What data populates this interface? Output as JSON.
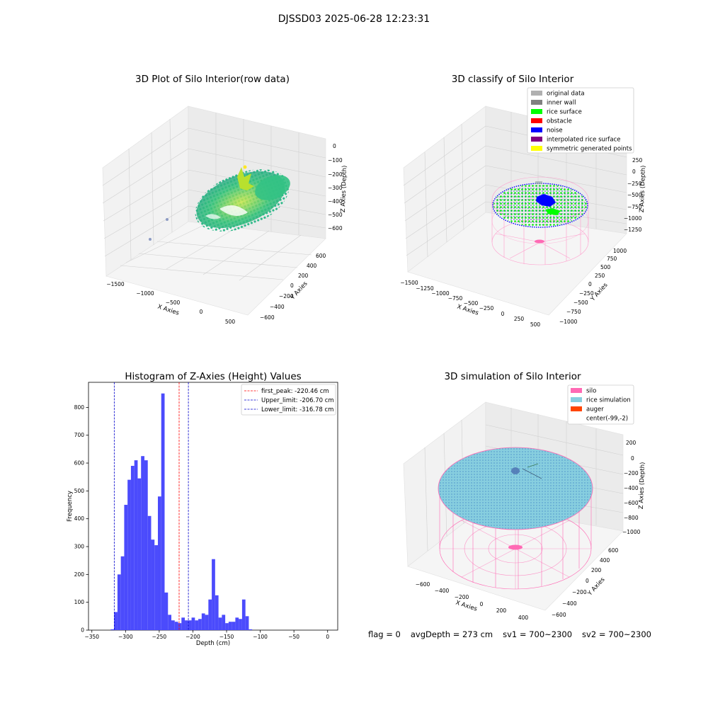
{
  "suptitle": "DJSSD03 2025-06-28 12:23:31",
  "footer": {
    "flag": "flag = 0",
    "avg_depth": "avgDepth = 273 cm",
    "sv1": "sv1 = 700~2300",
    "sv2": "sv2 = 700~2300"
  },
  "colors": {
    "histogram_bar": "#4b4bfc",
    "first_peak_line": "#ff0000",
    "limit_line": "#0000cc",
    "silo": "#ff69b4",
    "rice_simulation": "#87cedf",
    "auger": "#ff4500",
    "original_data": "#b0b0b0",
    "inner_wall": "#808080",
    "rice_surface": "#00ff00",
    "obstacle": "#ff0000",
    "noise": "#0000ff",
    "interpolated_rice_surface": "#800080",
    "symmetric_generated_points": "#ffff00"
  },
  "chart_data": [
    {
      "type": "scatter",
      "subtype": "3d",
      "title": "3D Plot of Silo Interior(row data)",
      "xlabel": "X Axies",
      "ylabel": "Y Axies",
      "zlabel": "Z Axies (Depth)",
      "x_ticks": [
        "−1500",
        "−1000",
        "−500",
        "0",
        "500"
      ],
      "y_ticks": [
        "−600",
        "−400",
        "−200",
        "0",
        "200",
        "400",
        "600"
      ],
      "z_ticks": [
        "−600",
        "−500",
        "−400",
        "−300",
        "−200",
        "−100",
        "0"
      ],
      "grid": true
    },
    {
      "type": "scatter",
      "subtype": "3d",
      "title": "3D classify of Silo Interior",
      "xlabel": "X Axies",
      "ylabel": "Y Axies",
      "zlabel": "Z Axies (Depth)",
      "x_ticks": [
        "−1500",
        "−1250",
        "−1000",
        "−750",
        "−500",
        "−250",
        "0",
        "250",
        "500"
      ],
      "y_ticks": [
        "−1000",
        "−750",
        "−500",
        "−250",
        "0",
        "250",
        "500",
        "750",
        "1000"
      ],
      "z_ticks": [
        "−1250",
        "−1000",
        "−750",
        "−500",
        "−250",
        "0",
        "250"
      ],
      "legend": [
        "original data",
        "inner wall",
        "rice surface",
        "obstacle",
        "noise",
        "interpolated rice surface",
        "symmetric generated points"
      ],
      "legend_placement": "top-right",
      "grid": true
    },
    {
      "type": "bar",
      "subtype": "histogram",
      "title": "Histogram of Z-Axies (Height) Values",
      "xlabel": "Depth (cm)",
      "ylabel": "Frequency",
      "xlim": [
        -355,
        15
      ],
      "ylim": [
        0,
        890
      ],
      "x_ticks": [
        -350,
        -300,
        -250,
        -200,
        -150,
        -100,
        -50,
        0
      ],
      "y_ticks": [
        0,
        100,
        200,
        300,
        400,
        500,
        600,
        700,
        800
      ],
      "bin_width": 5,
      "bins": [
        [
          -322,
          3
        ],
        [
          -317,
          65
        ],
        [
          -312,
          200
        ],
        [
          -307,
          265
        ],
        [
          -302,
          450
        ],
        [
          -297,
          540
        ],
        [
          -292,
          590
        ],
        [
          -287,
          610
        ],
        [
          -282,
          545
        ],
        [
          -277,
          625
        ],
        [
          -272,
          610
        ],
        [
          -267,
          410
        ],
        [
          -262,
          325
        ],
        [
          -257,
          305
        ],
        [
          -252,
          480
        ],
        [
          -247,
          850
        ],
        [
          -242,
          135
        ],
        [
          -237,
          55
        ],
        [
          -232,
          35
        ],
        [
          -227,
          30
        ],
        [
          -222,
          25
        ],
        [
          -217,
          45
        ],
        [
          -212,
          35
        ],
        [
          -207,
          35
        ],
        [
          -202,
          45
        ],
        [
          -197,
          35
        ],
        [
          -192,
          40
        ],
        [
          -187,
          60
        ],
        [
          -182,
          55
        ],
        [
          -177,
          110
        ],
        [
          -172,
          255
        ],
        [
          -167,
          125
        ],
        [
          -162,
          45
        ],
        [
          -157,
          55
        ],
        [
          -152,
          25
        ],
        [
          -147,
          30
        ],
        [
          -142,
          30
        ],
        [
          -137,
          45
        ],
        [
          -132,
          40
        ],
        [
          -127,
          110
        ],
        [
          -122,
          50
        ],
        [
          -117,
          3
        ]
      ],
      "vlines": [
        {
          "label": "first_peak: -220.46 cm",
          "x": -220.46,
          "color": "#ff0000"
        },
        {
          "label": "Upper_limit: -206.70 cm",
          "x": -206.7,
          "color": "#0000cc"
        },
        {
          "label": "Lower_limit: -316.78 cm",
          "x": -316.78,
          "color": "#0000cc"
        }
      ],
      "legend_placement": "top-right"
    },
    {
      "type": "scatter",
      "subtype": "3d",
      "title": "3D simulation of Silo Interior",
      "xlabel": "X Axies",
      "ylabel": "Y Axies",
      "zlabel": "Z Axies (Depth)",
      "x_ticks": [
        "−600",
        "−400",
        "−200",
        "0",
        "200",
        "400"
      ],
      "y_ticks": [
        "−600",
        "−400",
        "−200",
        "0",
        "200",
        "400",
        "600"
      ],
      "z_ticks": [
        "−1000",
        "−800",
        "−600",
        "−400",
        "−200",
        "0",
        "200"
      ],
      "legend": [
        "silo",
        "rice simulation",
        "auger",
        "center(-99,-2)"
      ],
      "legend_placement": "top-right",
      "grid": true
    }
  ]
}
